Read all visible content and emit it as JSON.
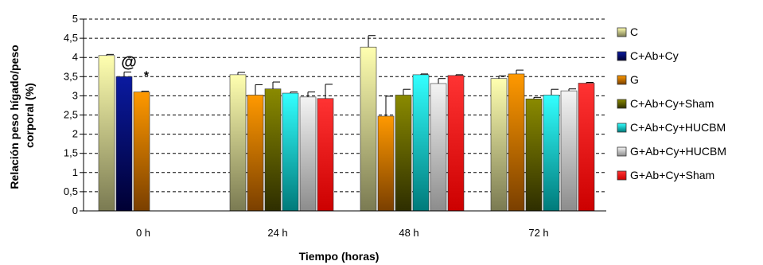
{
  "chart_data": {
    "type": "bar",
    "title": "",
    "xlabel": "Tiempo (horas)",
    "ylabel_lines": [
      "Relación peso hígado/peso",
      "corporal (%)"
    ],
    "ylim": [
      0,
      5
    ],
    "yticks": [
      "0",
      "0,5",
      "1",
      "1,5",
      "2",
      "2,5",
      "3",
      "3,5",
      "4",
      "4,5",
      "5"
    ],
    "grid": "horizontal-dashed",
    "legend_position": "right",
    "categories": [
      "0 h",
      "24 h",
      "48 h",
      "72 h"
    ],
    "series": [
      {
        "name": "C",
        "values": [
          4.05,
          3.55,
          4.27,
          3.45
        ],
        "errors": [
          0.03,
          0.06,
          0.3,
          0.07
        ],
        "color_top": "#ffffb0",
        "color_bottom": "#7a7a52"
      },
      {
        "name": "C+Ab+Cy",
        "values": [
          3.5,
          null,
          null,
          null
        ],
        "errors": [
          0.12,
          null,
          null,
          null
        ],
        "color_top": "#0a1aa0",
        "color_bottom": "#000033"
      },
      {
        "name": "G",
        "values": [
          3.1,
          3.02,
          2.47,
          3.57
        ],
        "errors": [
          0.02,
          0.27,
          0.52,
          0.1
        ],
        "color_top": "#ff9900",
        "color_bottom": "#7a3f00"
      },
      {
        "name": "C+Ab+Cy+Sham",
        "values": [
          null,
          3.18,
          3.02,
          2.92
        ],
        "errors": [
          null,
          0.18,
          0.15,
          0.04
        ],
        "color_top": "#8a8a00",
        "color_bottom": "#2e2e00"
      },
      {
        "name": "C+Ab+Cy+HUCBM",
        "values": [
          null,
          3.07,
          3.55,
          3.02
        ],
        "errors": [
          null,
          0.03,
          0.02,
          0.15
        ],
        "color_top": "#33ffff",
        "color_bottom": "#007a7a"
      },
      {
        "name": "G+Ab+Cy+HUCBM",
        "values": [
          null,
          2.97,
          3.32,
          3.13
        ],
        "errors": [
          null,
          0.13,
          0.13,
          0.05
        ],
        "color_top": "#f4f4f4",
        "color_bottom": "#8c8c8c"
      },
      {
        "name": "G+Ab+Cy+Sham",
        "values": [
          null,
          2.93,
          3.53,
          3.33
        ],
        "errors": [
          null,
          0.37,
          0.02,
          0.02
        ],
        "color_top": "#ff3333",
        "color_bottom": "#cc0000"
      }
    ],
    "annotations": [
      {
        "text": "@",
        "category": 0,
        "series": 1
      },
      {
        "text": "*",
        "category": 0,
        "series": 2
      }
    ]
  }
}
